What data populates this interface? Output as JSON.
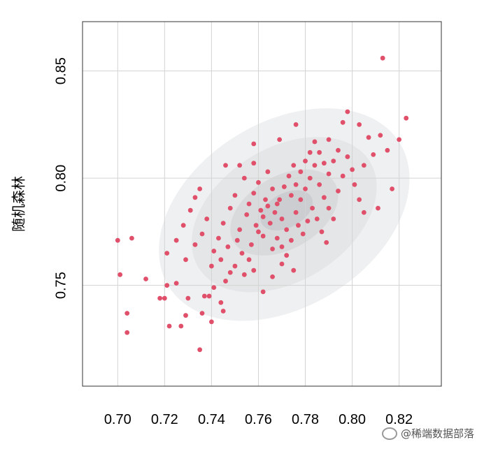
{
  "chart_data": {
    "type": "scatter",
    "title": "",
    "xlabel": "",
    "ylabel": "随机森林",
    "xlim": [
      0.685,
      0.838
    ],
    "ylim": [
      0.703,
      0.873
    ],
    "xticks": [
      "0.70",
      "0.72",
      "0.74",
      "0.76",
      "0.78",
      "0.80",
      "0.82"
    ],
    "yticks": [
      "0.75",
      "0.80",
      "0.85"
    ],
    "grid": true,
    "point_color": "#e0506a",
    "density_colors": [
      "#eef0f1",
      "#e4e6e7",
      "#d8dadc",
      "#cbcdd0"
    ],
    "density_levels": [
      {
        "cx": 0.771,
        "cy": 0.783,
        "rx": 0.058,
        "ry": 0.043,
        "angle": 32
      },
      {
        "cx": 0.771,
        "cy": 0.783,
        "rx": 0.043,
        "ry": 0.031,
        "angle": 32
      },
      {
        "cx": 0.771,
        "cy": 0.784,
        "rx": 0.025,
        "ry": 0.017,
        "angle": 30
      },
      {
        "cx": 0.772,
        "cy": 0.785,
        "rx": 0.012,
        "ry": 0.008,
        "angle": 28
      }
    ],
    "points": [
      [
        0.813,
        0.856
      ],
      [
        0.823,
        0.828
      ],
      [
        0.82,
        0.818
      ],
      [
        0.798,
        0.831
      ],
      [
        0.803,
        0.825
      ],
      [
        0.812,
        0.82
      ],
      [
        0.815,
        0.813
      ],
      [
        0.807,
        0.819
      ],
      [
        0.809,
        0.811
      ],
      [
        0.817,
        0.795
      ],
      [
        0.811,
        0.786
      ],
      [
        0.805,
        0.784
      ],
      [
        0.796,
        0.826
      ],
      [
        0.79,
        0.818
      ],
      [
        0.776,
        0.825
      ],
      [
        0.769,
        0.818
      ],
      [
        0.758,
        0.816
      ],
      [
        0.746,
        0.806
      ],
      [
        0.758,
        0.807
      ],
      [
        0.7,
        0.771
      ],
      [
        0.706,
        0.772
      ],
      [
        0.701,
        0.755
      ],
      [
        0.712,
        0.753
      ],
      [
        0.704,
        0.737
      ],
      [
        0.704,
        0.728
      ],
      [
        0.718,
        0.744
      ],
      [
        0.72,
        0.744
      ],
      [
        0.721,
        0.75
      ],
      [
        0.722,
        0.731
      ],
      [
        0.725,
        0.751
      ],
      [
        0.727,
        0.731
      ],
      [
        0.729,
        0.736
      ],
      [
        0.73,
        0.744
      ],
      [
        0.735,
        0.72
      ],
      [
        0.736,
        0.737
      ],
      [
        0.737,
        0.745
      ],
      [
        0.739,
        0.745
      ],
      [
        0.74,
        0.733
      ],
      [
        0.741,
        0.749
      ],
      [
        0.744,
        0.742
      ],
      [
        0.745,
        0.738
      ],
      [
        0.746,
        0.752
      ],
      [
        0.748,
        0.756
      ],
      [
        0.75,
        0.759
      ],
      [
        0.754,
        0.755
      ],
      [
        0.758,
        0.757
      ],
      [
        0.762,
        0.747
      ],
      [
        0.766,
        0.754
      ],
      [
        0.77,
        0.76
      ],
      [
        0.775,
        0.757
      ],
      [
        0.721,
        0.765
      ],
      [
        0.725,
        0.771
      ],
      [
        0.728,
        0.778
      ],
      [
        0.731,
        0.785
      ],
      [
        0.733,
        0.791
      ],
      [
        0.735,
        0.795
      ],
      [
        0.729,
        0.762
      ],
      [
        0.733,
        0.769
      ],
      [
        0.736,
        0.774
      ],
      [
        0.738,
        0.781
      ],
      [
        0.741,
        0.766
      ],
      [
        0.743,
        0.772
      ],
      [
        0.745,
        0.779
      ],
      [
        0.748,
        0.786
      ],
      [
        0.75,
        0.792
      ],
      [
        0.752,
        0.776
      ],
      [
        0.755,
        0.783
      ],
      [
        0.757,
        0.769
      ],
      [
        0.74,
        0.759
      ],
      [
        0.744,
        0.762
      ],
      [
        0.747,
        0.768
      ],
      [
        0.751,
        0.771
      ],
      [
        0.753,
        0.765
      ],
      [
        0.756,
        0.762
      ],
      [
        0.759,
        0.778
      ],
      [
        0.761,
        0.785
      ],
      [
        0.763,
        0.79
      ],
      [
        0.76,
        0.798
      ],
      [
        0.764,
        0.803
      ],
      [
        0.766,
        0.795
      ],
      [
        0.768,
        0.788
      ],
      [
        0.77,
        0.781
      ],
      [
        0.772,
        0.776
      ],
      [
        0.774,
        0.771
      ],
      [
        0.776,
        0.784
      ],
      [
        0.778,
        0.79
      ],
      [
        0.78,
        0.795
      ],
      [
        0.782,
        0.8
      ],
      [
        0.784,
        0.806
      ],
      [
        0.786,
        0.797
      ],
      [
        0.788,
        0.791
      ],
      [
        0.79,
        0.786
      ],
      [
        0.792,
        0.781
      ],
      [
        0.794,
        0.794
      ],
      [
        0.796,
        0.801
      ],
      [
        0.798,
        0.81
      ],
      [
        0.8,
        0.804
      ],
      [
        0.801,
        0.797
      ],
      [
        0.803,
        0.79
      ],
      [
        0.805,
        0.806
      ],
      [
        0.762,
        0.773
      ],
      [
        0.765,
        0.779
      ],
      [
        0.767,
        0.784
      ],
      [
        0.769,
        0.79
      ],
      [
        0.771,
        0.796
      ],
      [
        0.773,
        0.801
      ],
      [
        0.775,
        0.806
      ],
      [
        0.777,
        0.778
      ],
      [
        0.779,
        0.774
      ],
      [
        0.781,
        0.78
      ],
      [
        0.783,
        0.786
      ],
      [
        0.785,
        0.781
      ],
      [
        0.787,
        0.775
      ],
      [
        0.789,
        0.77
      ],
      [
        0.766,
        0.767
      ],
      [
        0.768,
        0.772
      ],
      [
        0.77,
        0.768
      ],
      [
        0.772,
        0.764
      ],
      [
        0.756,
        0.788
      ],
      [
        0.758,
        0.793
      ],
      [
        0.754,
        0.8
      ],
      [
        0.752,
        0.806
      ],
      [
        0.76,
        0.775
      ],
      [
        0.762,
        0.782
      ],
      [
        0.764,
        0.787
      ],
      [
        0.774,
        0.792
      ],
      [
        0.776,
        0.797
      ],
      [
        0.778,
        0.803
      ],
      [
        0.78,
        0.808
      ],
      [
        0.782,
        0.812
      ],
      [
        0.784,
        0.817
      ],
      [
        0.786,
        0.812
      ],
      [
        0.788,
        0.807
      ],
      [
        0.79,
        0.802
      ],
      [
        0.792,
        0.808
      ],
      [
        0.794,
        0.813
      ]
    ]
  },
  "watermark": {
    "text": "@稀端数据部落"
  }
}
